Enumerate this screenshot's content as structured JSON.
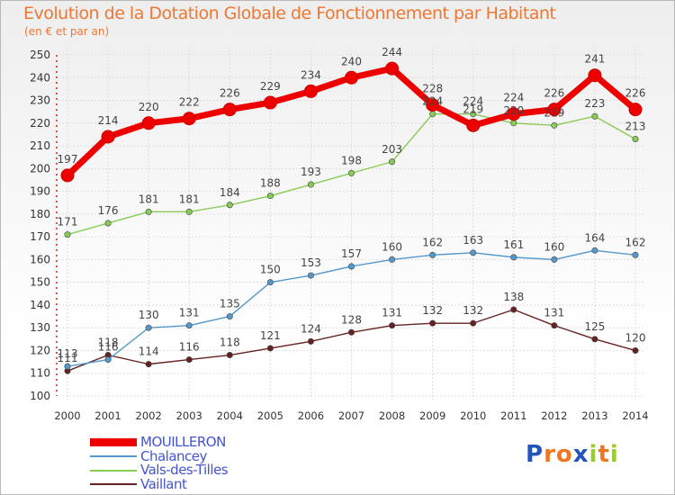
{
  "chart_data": {
    "type": "line",
    "title": "Evolution de la Dotation Globale de Fonctionnement par Habitant",
    "subtitle": "(en € et par an)",
    "xlabel": "",
    "ylabel": "",
    "x": [
      "2000",
      "2001",
      "2002",
      "2003",
      "2004",
      "2005",
      "2006",
      "2007",
      "2008",
      "2009",
      "2010",
      "2011",
      "2012",
      "2013",
      "2014"
    ],
    "ylim": [
      100,
      250
    ],
    "yticks": [
      "100",
      "110",
      "120",
      "130",
      "140",
      "150",
      "160",
      "170",
      "180",
      "190",
      "200",
      "210",
      "220",
      "230",
      "240",
      "250"
    ],
    "grid": true,
    "legend_position": "bottom-left",
    "series": [
      {
        "name": "MOUILLERON",
        "color": "#ee0000",
        "values": [
          197,
          214,
          220,
          222,
          226,
          229,
          234,
          240,
          244,
          228,
          219,
          224,
          226,
          241,
          226
        ]
      },
      {
        "name": "Chalancey",
        "color": "#5599cc",
        "values": [
          113,
          116,
          130,
          131,
          135,
          150,
          153,
          157,
          160,
          162,
          163,
          161,
          160,
          164,
          162
        ]
      },
      {
        "name": "Vals-des-Tilles",
        "color": "#88cc55",
        "values": [
          171,
          176,
          181,
          181,
          184,
          188,
          193,
          198,
          203,
          224,
          224,
          220,
          219,
          223,
          213
        ]
      },
      {
        "name": "Vaillant",
        "color": "#662222",
        "values": [
          111,
          118,
          114,
          116,
          118,
          121,
          124,
          128,
          131,
          132,
          132,
          138,
          131,
          125,
          120
        ]
      }
    ]
  },
  "logo": {
    "letters": [
      "P",
      "r",
      "o",
      "x",
      "i",
      "t",
      "i"
    ],
    "colors": [
      "#2255bb",
      "#ee7722",
      "#ee7722",
      "#2255bb",
      "#99cc33",
      "#ee7722",
      "#99cc33"
    ]
  }
}
